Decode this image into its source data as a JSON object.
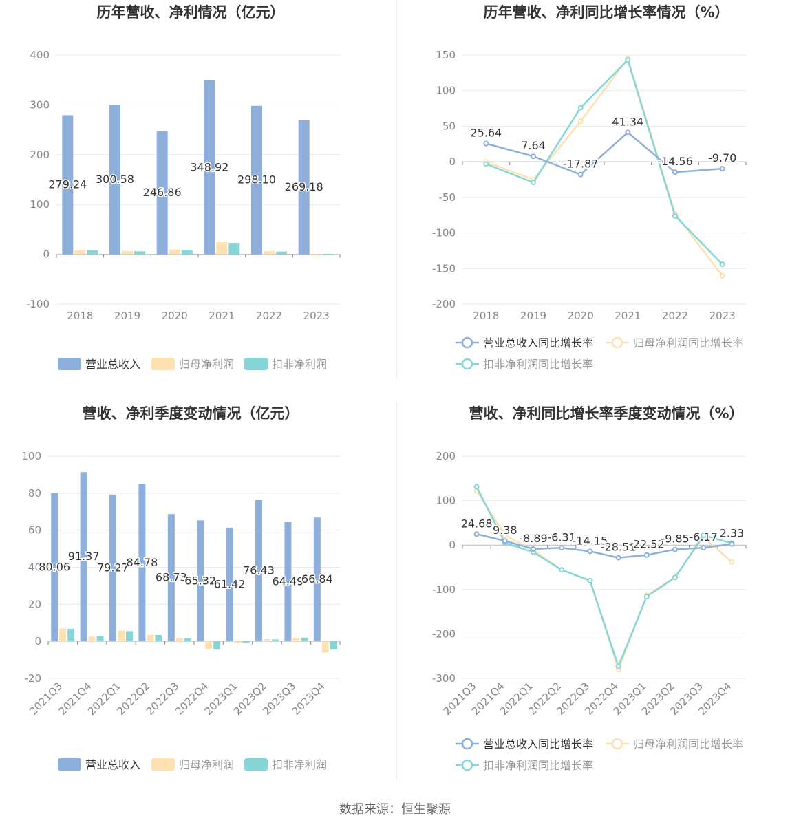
{
  "source_label": "数据来源：恒生聚源",
  "colors": {
    "revenue": "#8eaedb",
    "net_profit": "#ffe0b0",
    "deducted": "#86d6d8"
  },
  "chart_data": [
    {
      "type": "bar",
      "title": "历年营收、净利情况（亿元）",
      "categories": [
        "2018",
        "2019",
        "2020",
        "2021",
        "2022",
        "2023"
      ],
      "ylim": [
        -100,
        400
      ],
      "yticks": [
        -100,
        0,
        100,
        200,
        300,
        400
      ],
      "legend": "bottom",
      "series": [
        {
          "name": "营业总收入",
          "values": [
            279.24,
            300.58,
            246.86,
            348.92,
            298.1,
            269.18
          ],
          "labels": [
            "279.24",
            "300.58",
            "246.86",
            "348.92",
            "298.10",
            "269.18"
          ]
        },
        {
          "name": "归母净利润",
          "values": [
            8.5,
            6.5,
            9.5,
            24.0,
            6.5,
            -2.5
          ]
        },
        {
          "name": "扣非净利润",
          "values": [
            8.0,
            6.0,
            9.0,
            23.0,
            5.5,
            -2.0
          ]
        }
      ]
    },
    {
      "type": "line",
      "title": "历年营收、净利同比增长率情况（%）",
      "categories": [
        "2018",
        "2019",
        "2020",
        "2021",
        "2022",
        "2023"
      ],
      "ylim": [
        -200,
        150
      ],
      "yticks": [
        -200,
        -150,
        -100,
        -50,
        0,
        50,
        100,
        150
      ],
      "legend": "bottom",
      "series": [
        {
          "name": "营业总收入同比增长率",
          "values": [
            25.64,
            7.64,
            -17.87,
            41.34,
            -14.56,
            -9.7
          ],
          "labels": [
            "25.64",
            "7.64",
            "-17.87",
            "41.34",
            "-14.56",
            "-9.70"
          ]
        },
        {
          "name": "归母净利润同比增长率",
          "values": [
            0,
            -25,
            57,
            145,
            -73,
            -160
          ]
        },
        {
          "name": "扣非净利润同比增长率",
          "values": [
            -3,
            -29,
            76,
            143,
            -76,
            -144
          ]
        }
      ]
    },
    {
      "type": "bar",
      "title": "营收、净利季度变动情况（亿元）",
      "categories": [
        "2021Q3",
        "2021Q4",
        "2022Q1",
        "2022Q2",
        "2022Q3",
        "2022Q4",
        "2023Q1",
        "2023Q2",
        "2023Q3",
        "2023Q4"
      ],
      "ylim": [
        -20,
        100
      ],
      "yticks": [
        -20,
        0,
        20,
        40,
        60,
        80,
        100
      ],
      "legend": "bottom",
      "series": [
        {
          "name": "营业总收入",
          "values": [
            80.06,
            91.37,
            79.27,
            84.78,
            68.73,
            65.32,
            61.42,
            76.43,
            64.49,
            66.84
          ],
          "labels": [
            "80.06",
            "91.37",
            "79.27",
            "84.78",
            "68.73",
            "65.32",
            "61.42",
            "76.43",
            "64.49",
            "66.84"
          ]
        },
        {
          "name": "归母净利润",
          "values": [
            7.0,
            2.5,
            5.8,
            3.5,
            1.6,
            -4.0,
            -1.0,
            1.2,
            1.9,
            -6.0
          ]
        },
        {
          "name": "扣非净利润",
          "values": [
            6.8,
            2.8,
            5.5,
            3.4,
            1.5,
            -4.5,
            -0.8,
            1.0,
            2.0,
            -4.5
          ]
        }
      ]
    },
    {
      "type": "line",
      "title": "营收、净利同比增长率季度变动情况（%）",
      "categories": [
        "2021Q3",
        "2021Q4",
        "2022Q1",
        "2022Q2",
        "2022Q3",
        "2022Q4",
        "2023Q1",
        "2023Q2",
        "2023Q3",
        "2023Q4"
      ],
      "ylim": [
        -300,
        200
      ],
      "yticks": [
        -300,
        -200,
        -100,
        0,
        100,
        200
      ],
      "legend": "bottom",
      "series": [
        {
          "name": "营业总收入同比增长率",
          "values": [
            24.68,
            9.38,
            -8.89,
            -6.31,
            -14.15,
            -28.51,
            -22.52,
            -9.85,
            -6.17,
            2.33
          ],
          "labels": [
            "24.68",
            "9.38",
            "-8.89",
            "-6.31",
            "-14.15",
            "-28.51",
            "-22.52",
            "-9.85",
            "-6.17",
            "2.33"
          ]
        },
        {
          "name": "归母净利润同比增长率",
          "values": [
            122,
            22,
            -12,
            -56,
            -80,
            -280,
            -113,
            -72,
            18,
            -38
          ]
        },
        {
          "name": "扣非净利润同比增长率",
          "values": [
            131,
            5,
            -16,
            -56,
            -80,
            -273,
            -116,
            -73,
            22,
            4
          ]
        }
      ]
    }
  ]
}
